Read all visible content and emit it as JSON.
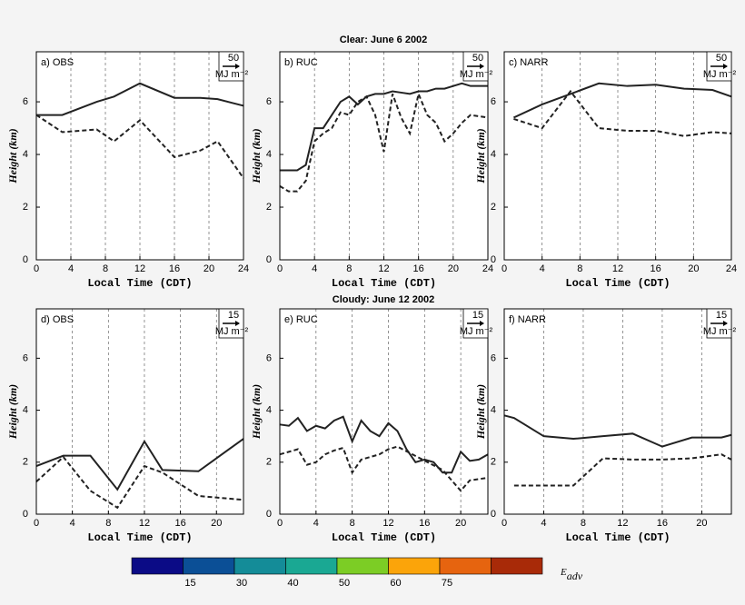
{
  "suptitles": [
    "Clear: June 6 2002",
    "Cloudy: June 12 2002"
  ],
  "chart_data": [
    {
      "type": "line",
      "title": "a) OBS",
      "xlabel": "Local Time (CDT)",
      "ylabel": "Height (km)",
      "key_value": 50,
      "key_unit": "MJ m⁻²",
      "xlim": [
        0,
        24
      ],
      "ylim": [
        0,
        7.9
      ],
      "xticks": [
        0,
        4,
        8,
        12,
        16,
        20,
        24
      ],
      "yticks": [
        0,
        2,
        4,
        6
      ],
      "grid": true,
      "series": [
        {
          "style": "solid",
          "color": "#222222",
          "x": [
            0,
            3,
            7,
            9,
            12,
            16,
            19,
            21,
            24
          ],
          "values": [
            5.5,
            5.5,
            6,
            6.2,
            6.7,
            6.15,
            6.15,
            6.1,
            5.85
          ]
        },
        {
          "style": "dashed",
          "color": "#222222",
          "x": [
            0,
            3,
            7,
            9,
            12,
            16,
            19,
            21,
            24
          ],
          "values": [
            5.5,
            4.85,
            4.95,
            4.5,
            5.3,
            3.9,
            4.15,
            4.5,
            3.1
          ]
        }
      ]
    },
    {
      "type": "line",
      "title": "b) RUC",
      "xlabel": "Local Time (CDT)",
      "ylabel": "Height (km)",
      "key_value": 50,
      "key_unit": "MJ m⁻²",
      "xlim": [
        0,
        24
      ],
      "ylim": [
        0,
        7.9
      ],
      "xticks": [
        0,
        4,
        8,
        12,
        16,
        20,
        24
      ],
      "yticks": [
        0,
        2,
        4,
        6
      ],
      "grid": true,
      "series": [
        {
          "style": "solid",
          "color": "#222222",
          "x": [
            0,
            2,
            3,
            4,
            5,
            6,
            7,
            8,
            9,
            10,
            11,
            12,
            13,
            14,
            15,
            16,
            17,
            18,
            19,
            20,
            21,
            22,
            24
          ],
          "values": [
            3.4,
            3.4,
            3.6,
            5,
            5,
            5.5,
            6,
            6.2,
            5.9,
            6.2,
            6.3,
            6.3,
            6.4,
            6.35,
            6.3,
            6.4,
            6.4,
            6.5,
            6.5,
            6.6,
            6.7,
            6.6,
            6.6
          ]
        },
        {
          "style": "dashed",
          "color": "#222222",
          "x": [
            0,
            1,
            2,
            3,
            4,
            5,
            6,
            7,
            8,
            9,
            10,
            11,
            12,
            13,
            14,
            15,
            16,
            17,
            18,
            19,
            20,
            21,
            22,
            24
          ],
          "values": [
            2.8,
            2.6,
            2.6,
            3,
            4.5,
            4.8,
            5,
            5.6,
            5.5,
            6,
            6.2,
            5.5,
            4.1,
            6.3,
            5.4,
            4.8,
            6.3,
            5.5,
            5.2,
            4.5,
            4.8,
            5.2,
            5.5,
            5.4
          ]
        }
      ]
    },
    {
      "type": "line",
      "title": "c) NARR",
      "xlabel": "Local Time (CDT)",
      "ylabel": "Height (km)",
      "key_value": 50,
      "key_unit": "MJ m⁻²",
      "xlim": [
        0,
        24
      ],
      "ylim": [
        0,
        7.9
      ],
      "xticks": [
        0,
        4,
        8,
        12,
        16,
        20,
        24
      ],
      "yticks": [
        0,
        2,
        4,
        6
      ],
      "grid": true,
      "series": [
        {
          "style": "solid",
          "color": "#222222",
          "x": [
            1,
            4,
            7,
            10,
            13,
            16,
            19,
            22,
            24
          ],
          "values": [
            5.4,
            5.9,
            6.3,
            6.7,
            6.6,
            6.65,
            6.5,
            6.45,
            6.2
          ]
        },
        {
          "style": "dashed",
          "color": "#222222",
          "x": [
            1,
            4,
            7,
            10,
            13,
            16,
            19,
            22,
            24
          ],
          "values": [
            5.35,
            5.0,
            6.4,
            5.0,
            4.9,
            4.9,
            4.7,
            4.85,
            4.8
          ]
        }
      ]
    },
    {
      "type": "line",
      "title": "d) OBS",
      "xlabel": "Local Time (CDT)",
      "ylabel": "Height (km)",
      "key_value": 15,
      "key_unit": "MJ m⁻²",
      "xlim": [
        0,
        23
      ],
      "ylim": [
        0,
        7.9
      ],
      "xticks": [
        0,
        4,
        8,
        12,
        16,
        20
      ],
      "yticks": [
        0,
        2,
        4,
        6
      ],
      "grid": true,
      "series": [
        {
          "style": "solid",
          "color": "#222222",
          "x": [
            0,
            3,
            6,
            9,
            12,
            14,
            18,
            23
          ],
          "values": [
            1.85,
            2.25,
            2.25,
            0.95,
            2.8,
            1.7,
            1.65,
            2.9
          ]
        },
        {
          "style": "dashed",
          "color": "#222222",
          "x": [
            0,
            3,
            6,
            9,
            12,
            14,
            18,
            23
          ],
          "values": [
            1.25,
            2.2,
            0.9,
            0.25,
            1.85,
            1.6,
            0.7,
            0.55
          ]
        }
      ]
    },
    {
      "type": "line",
      "title": "e) RUC",
      "xlabel": "Local Time (CDT)",
      "ylabel": "Height (km)",
      "key_value": 15,
      "key_unit": "MJ m⁻²",
      "xlim": [
        0,
        23
      ],
      "ylim": [
        0,
        7.9
      ],
      "xticks": [
        0,
        4,
        8,
        12,
        16,
        20
      ],
      "yticks": [
        0,
        2,
        4,
        6
      ],
      "grid": true,
      "series": [
        {
          "style": "solid",
          "color": "#222222",
          "x": [
            0,
            1,
            2,
            3,
            4,
            5,
            6,
            7,
            8,
            9,
            10,
            11,
            12,
            13,
            14,
            15,
            16,
            17,
            18,
            19,
            20,
            21,
            22,
            23
          ],
          "values": [
            3.45,
            3.4,
            3.7,
            3.2,
            3.4,
            3.3,
            3.6,
            3.75,
            2.8,
            3.6,
            3.2,
            3.0,
            3.5,
            3.2,
            2.5,
            2.0,
            2.1,
            2.0,
            1.6,
            1.6,
            2.4,
            2.05,
            2.1,
            2.3
          ]
        },
        {
          "style": "dashed",
          "color": "#222222",
          "x": [
            0,
            2,
            3,
            4,
            5,
            6,
            7,
            8,
            9,
            10,
            11,
            12,
            13,
            18,
            20,
            21,
            23
          ],
          "values": [
            2.3,
            2.5,
            1.9,
            2.0,
            2.3,
            2.45,
            2.55,
            1.6,
            2.1,
            2.2,
            2.3,
            2.5,
            2.6,
            1.7,
            0.9,
            1.3,
            1.4
          ]
        }
      ]
    },
    {
      "type": "line",
      "title": "f) NARR",
      "xlabel": "Local Time (CDT)",
      "ylabel": "Height (km)",
      "key_value": 15,
      "key_unit": "MJ m⁻²",
      "xlim": [
        0,
        23
      ],
      "ylim": [
        0,
        7.9
      ],
      "xticks": [
        0,
        4,
        8,
        12,
        16,
        20
      ],
      "yticks": [
        0,
        2,
        4,
        6
      ],
      "grid": true,
      "series": [
        {
          "style": "solid",
          "color": "#222222",
          "x": [
            0,
            1,
            4,
            7,
            10,
            13,
            16,
            19,
            22,
            23
          ],
          "values": [
            3.8,
            3.7,
            3.0,
            2.9,
            3.0,
            3.1,
            2.6,
            2.95,
            2.95,
            3.05
          ]
        },
        {
          "style": "dashed",
          "color": "#222222",
          "x": [
            1,
            4,
            7,
            10,
            13,
            16,
            19,
            22,
            23
          ],
          "values": [
            1.1,
            1.1,
            1.1,
            2.15,
            2.1,
            2.1,
            2.15,
            2.3,
            2.1
          ]
        }
      ]
    }
  ],
  "colorbar": {
    "colors": [
      "#0b0b86",
      "#0b4f96",
      "#148c98",
      "#1aa893",
      "#7ccd25",
      "#fba40a",
      "#e6640f",
      "#a82a08"
    ],
    "ticks": [
      15,
      30,
      40,
      50,
      60,
      75
    ],
    "label": "E",
    "label_sub": "adv"
  }
}
